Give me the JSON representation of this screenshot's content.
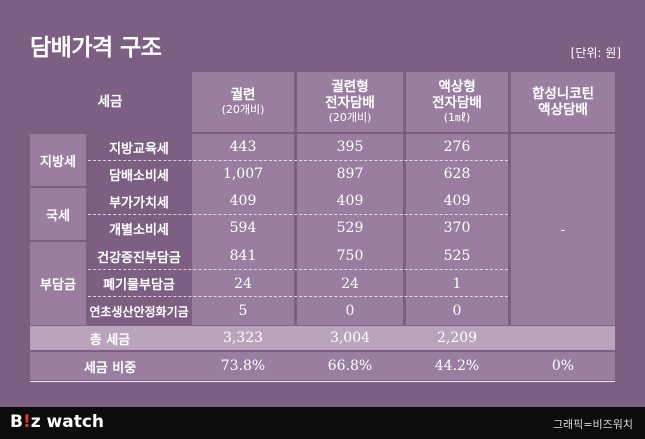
{
  "title": "담배가격 구조",
  "unit": "[단위: 원]",
  "header": {
    "tax": "세금",
    "cols": [
      {
        "line1": "궐련",
        "line2": "",
        "sub": "(20개비)"
      },
      {
        "line1": "궐련형",
        "line2": "전자담배",
        "sub": "(20개비)"
      },
      {
        "line1": "액상형",
        "line2": "전자담배",
        "sub": "(1㎖)"
      },
      {
        "line1": "합성니코틴",
        "line2": "액상담배",
        "sub": ""
      }
    ]
  },
  "categories": [
    "지방세",
    "국세",
    "부담금"
  ],
  "rows": [
    {
      "label": "지방교육세",
      "v": [
        "443",
        "395",
        "276"
      ]
    },
    {
      "label": "담배소비세",
      "v": [
        "1,007",
        "897",
        "628"
      ]
    },
    {
      "label": "부가가치세",
      "v": [
        "409",
        "409",
        "409"
      ]
    },
    {
      "label": "개별소비세",
      "v": [
        "594",
        "529",
        "370"
      ]
    },
    {
      "label": "건강증진부담금",
      "v": [
        "841",
        "750",
        "525"
      ]
    },
    {
      "label": "폐기물부담금",
      "v": [
        "24",
        "24",
        "1"
      ]
    },
    {
      "label": "연초생산안정화기금",
      "v": [
        "5",
        "0",
        "0"
      ]
    }
  ],
  "synthetic_value": "-",
  "total": {
    "label": "총 세금",
    "v": [
      "3,323",
      "3,004",
      "2,209"
    ]
  },
  "ratio": {
    "label": "세금 비중",
    "v": [
      "73.8%",
      "66.8%",
      "44.2%",
      "0%"
    ]
  },
  "footer": {
    "logo_left": "B",
    "logo_accent": "!",
    "logo_right": "z watch",
    "credit": "그래픽=비즈워치"
  }
}
